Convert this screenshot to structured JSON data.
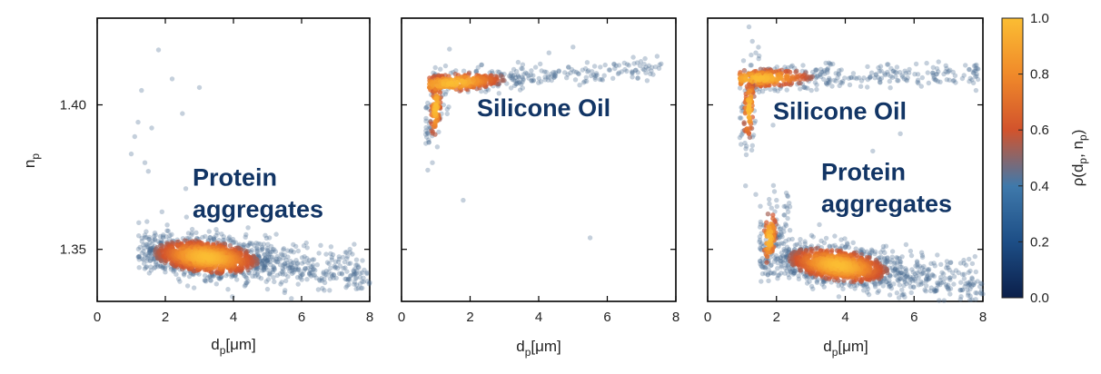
{
  "chart_data": [
    {
      "type": "scatter",
      "panel": "left",
      "xlabel_main": "d",
      "xlabel_sub": "p",
      "xlabel_unit": "[μm]",
      "ylabel_main": "n",
      "ylabel_sub": "p",
      "xlim": [
        0,
        8
      ],
      "ylim": [
        1.332,
        1.43
      ],
      "xticks": [
        0,
        2,
        4,
        6,
        8
      ],
      "yticks": [
        1.35,
        1.4
      ],
      "xtick_labels": [
        "0",
        "2",
        "4",
        "6",
        "8"
      ],
      "ytick_labels": [
        "1.35",
        "1.40"
      ],
      "annotations": [
        {
          "lines": [
            "Protein",
            "aggregates"
          ],
          "x": 2.8,
          "y": 1.372
        }
      ],
      "clusters": [
        {
          "name": "protein aggregates",
          "x_range": [
            1.2,
            8.0
          ],
          "y_center_start": 1.3495,
          "y_center_end": 1.342,
          "y_spread": 0.0035,
          "density_peak_x": 3.2,
          "count": 1400
        }
      ],
      "outliers": [
        [
          1.8,
          1.419
        ],
        [
          2.2,
          1.409
        ],
        [
          2.5,
          1.397
        ],
        [
          1.1,
          1.389
        ],
        [
          1.3,
          1.405
        ],
        [
          1.0,
          1.383
        ],
        [
          1.5,
          1.377
        ],
        [
          1.9,
          1.363
        ],
        [
          1.4,
          1.38
        ],
        [
          2.6,
          1.371
        ],
        [
          5.5,
          1.335
        ],
        [
          5.7,
          1.333
        ],
        [
          1.2,
          1.394
        ],
        [
          1.6,
          1.392
        ],
        [
          3.0,
          1.406
        ]
      ]
    },
    {
      "type": "scatter",
      "panel": "middle",
      "xlabel_main": "d",
      "xlabel_sub": "p",
      "xlabel_unit": "[μm]",
      "xlim": [
        0,
        8
      ],
      "ylim": [
        1.332,
        1.43
      ],
      "xticks": [
        0,
        2,
        4,
        6,
        8
      ],
      "yticks": [
        1.35,
        1.4
      ],
      "xtick_labels": [
        "0",
        "2",
        "4",
        "6",
        "8"
      ],
      "annotations": [
        {
          "lines": [
            "Silicone Oil"
          ],
          "x": 2.2,
          "y": 1.396
        }
      ],
      "clusters": [
        {
          "name": "silicone oil",
          "x_range": [
            0.8,
            7.6
          ],
          "y_center_start": 1.407,
          "y_center_end": 1.413,
          "y_spread": 0.002,
          "density_peak_x": 1.5,
          "count": 400
        },
        {
          "name": "silicone oil tail",
          "x_range": [
            0.7,
            1.4
          ],
          "y_center_start": 1.392,
          "y_center_end": 1.408,
          "y_spread": 0.006,
          "density_peak_x": 1.0,
          "count": 120
        }
      ],
      "outliers": [
        [
          0.9,
          1.38
        ],
        [
          1.8,
          1.367
        ],
        [
          5.5,
          1.354
        ],
        [
          5.0,
          1.42
        ],
        [
          4.3,
          1.418
        ],
        [
          0.8,
          1.387
        ]
      ]
    },
    {
      "type": "scatter",
      "panel": "right",
      "xlabel_main": "d",
      "xlabel_sub": "p",
      "xlabel_unit": "[μm]",
      "xlim": [
        0,
        8
      ],
      "ylim": [
        1.332,
        1.43
      ],
      "xticks": [
        0,
        2,
        4,
        6,
        8
      ],
      "yticks": [
        1.35,
        1.4
      ],
      "xtick_labels": [
        "0",
        "2",
        "4",
        "6",
        "8"
      ],
      "annotations": [
        {
          "lines": [
            "Silicone Oil"
          ],
          "x": 1.9,
          "y": 1.395
        },
        {
          "lines": [
            "Protein",
            "aggregates"
          ],
          "x": 3.3,
          "y": 1.374
        }
      ],
      "clusters": [
        {
          "name": "silicone oil",
          "x_range": [
            0.9,
            7.9
          ],
          "y_center_start": 1.409,
          "y_center_end": 1.411,
          "y_spread": 0.002,
          "density_peak_x": 1.5,
          "count": 380
        },
        {
          "name": "silicone oil tail",
          "x_range": [
            0.9,
            1.6
          ],
          "y_center_start": 1.392,
          "y_center_end": 1.408,
          "y_spread": 0.007,
          "density_peak_x": 1.2,
          "count": 110
        },
        {
          "name": "protein aggregates",
          "x_range": [
            1.5,
            8.0
          ],
          "y_center_start": 1.348,
          "y_center_end": 1.338,
          "y_spread": 0.0035,
          "density_peak_x": 3.8,
          "count": 1200
        },
        {
          "name": "protein tail",
          "x_range": [
            1.5,
            2.4
          ],
          "y_center_start": 1.35,
          "y_center_end": 1.362,
          "y_spread": 0.006,
          "density_peak_x": 1.8,
          "count": 120
        }
      ],
      "outliers": [
        [
          1.2,
          1.427
        ],
        [
          1.3,
          1.422
        ],
        [
          1.4,
          1.418
        ],
        [
          2.0,
          1.367
        ],
        [
          1.4,
          1.369
        ],
        [
          1.1,
          1.372
        ],
        [
          4.8,
          1.384
        ],
        [
          1.9,
          1.393
        ],
        [
          5.6,
          1.39
        ],
        [
          7.8,
          1.405
        ]
      ]
    }
  ],
  "colorbar": {
    "label": "ρ(d_p, n_p)",
    "label_rho": "ρ(d",
    "label_p1": "p",
    "label_mid": ", n",
    "label_p2": "p",
    "label_close": ")",
    "range": [
      0.0,
      1.0
    ],
    "ticks": [
      "0.0",
      "0.2",
      "0.4",
      "0.6",
      "0.8",
      "1.0"
    ],
    "colors": [
      "#0b1f4a",
      "#1d4e86",
      "#3f79ab",
      "#d2532c",
      "#f08a2a",
      "#fbbd33"
    ]
  },
  "marker_base_color": "#4a6c93"
}
